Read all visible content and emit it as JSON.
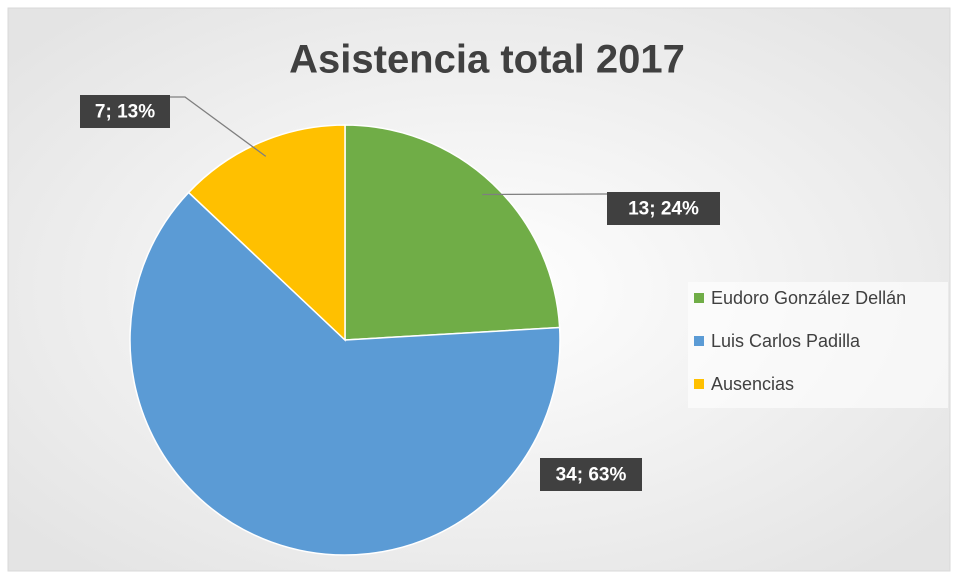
{
  "chart_data": {
    "type": "pie",
    "title": "Asistencia total 2017",
    "categories": [
      "Eudoro González Dellán",
      "Luis Carlos Padilla",
      "Ausencias"
    ],
    "values": [
      13,
      34,
      7
    ],
    "value_labels": [
      "13; 24%",
      "34; 63%",
      "7; 13%"
    ],
    "colors": [
      "#70ad47",
      "#5b9bd5",
      "#ffc000"
    ],
    "legend": "right"
  }
}
